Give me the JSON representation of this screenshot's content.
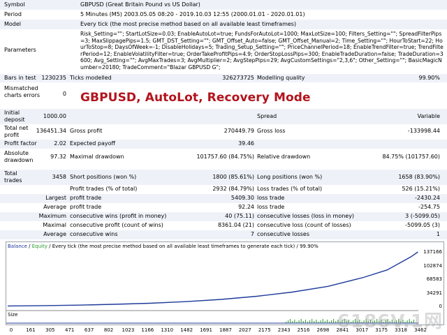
{
  "rows": {
    "symbol": {
      "label": "Symbol",
      "value": "GBPUSD (Great Britain Pound vs US Dollar)"
    },
    "period": {
      "label": "Period",
      "value": "5 Minutes (M5) 2003.05.05 08:20 - 2019.10.03 12:55 (2000.01.01 - 2020.01.01)"
    },
    "model": {
      "label": "Model",
      "value": "Every tick (the most precise method based on all available least timeframes)"
    },
    "parameters": {
      "label": "Parameters",
      "value": "Risk_Setting=\"\"; StartLotSize=0.03; EnableAutoLot=true; FundsForAutoLot=1000; MaxLotSize=100; Filters_Setting=\"\"; SpreadFilterPips=3; MaxSlippagePips=1.5; GMT_DST_Setting=\"\"; GMT_Offset_Auto=false; GMT_Offset_Manual=2; Time_Setting=\"\"; HourToStart=22; HourToStop=8; DaysOfWeek=-1; DisableHolidays=5; Trading_Setup_Setting=\"\"; PriceChannelPeriod=18; EnableTrendFilter=true; TrendFilterPeriod=12; EnableVolatilityFilter=true; OrderTakeProfitPips=4.9; OrderStopLossPips=300; EnableTradeDuration=false; TradeDuration=3600; Avg_Setting=\"\"; AvgMaxTrades=3; AvgMultiplier=2; AvgStepPips=29; AvgCustomSettings=\"2,3,6\"; Other_Setting=\"\"; BasicMagicNumber=20180; TradeComment=\"Blazar GBPUSD G\";"
    },
    "bars_in_test": {
      "label": "Bars in test",
      "value": "1230235"
    },
    "ticks_modelled": {
      "label": "Ticks modelled",
      "value": "326273725"
    },
    "modelling_quality": {
      "label": "Modelling quality",
      "value": "99.90%"
    },
    "mismatched": {
      "label": "Mismatched charts errors",
      "value": "0"
    },
    "initial_deposit": {
      "label": "Initial deposit",
      "value": "1000.00"
    },
    "spread": {
      "label": "Spread",
      "value": "Variable"
    },
    "net_profit": {
      "label": "Total net profit",
      "value": "136451.34"
    },
    "gross_profit": {
      "label": "Gross profit",
      "value": "270449.79"
    },
    "gross_loss": {
      "label": "Gross loss",
      "value": "-133998.44"
    },
    "profit_factor": {
      "label": "Profit factor",
      "value": "2.02"
    },
    "expected_payoff": {
      "label": "Expected payoff",
      "value": "39.46"
    },
    "abs_drawdown": {
      "label": "Absolute drawdown",
      "value": "97.32"
    },
    "max_drawdown": {
      "label": "Maximal drawdown",
      "value": "101757.60 (84.75%)"
    },
    "rel_drawdown": {
      "label": "Relative drawdown",
      "value": "84.75% (101757.60)"
    },
    "total_trades": {
      "label": "Total trades",
      "value": "3458"
    },
    "short_positions": {
      "label": "Short positions (won %)",
      "value": "1800 (85.61%)"
    },
    "long_positions": {
      "label": "Long positions (won %)",
      "value": "1658 (83.90%)"
    },
    "profit_trades": {
      "label": "Profit trades (% of total)",
      "value": "2932 (84.79%)"
    },
    "loss_trades": {
      "label": "Loss trades (% of total)",
      "value": "526 (15.21%)"
    },
    "largest_profit": {
      "prefix": "Largest",
      "label": "profit trade",
      "value": "5409.30"
    },
    "largest_loss": {
      "label": "loss trade",
      "value": "-2430.24"
    },
    "average_profit": {
      "prefix": "Average",
      "label": "profit trade",
      "value": "92.24"
    },
    "average_loss": {
      "label": "loss trade",
      "value": "-254.75"
    },
    "max_cons_wins": {
      "prefix": "Maximum",
      "label": "consecutive wins (profit in money)",
      "value": "40 (75.11)"
    },
    "max_cons_losses": {
      "label": "consecutive losses (loss in money)",
      "value": "3 (-5099.05)"
    },
    "maximal_cons_profit": {
      "prefix": "Maximal",
      "label": "consecutive profit (count of wins)",
      "value": "8361.04 (21)"
    },
    "maximal_cons_loss": {
      "label": "consecutive loss (count of losses)",
      "value": "-5099.05 (3)"
    },
    "avg_cons_wins": {
      "prefix": "Average",
      "label": "consecutive wins",
      "value": "7"
    },
    "avg_cons_losses": {
      "label": "consecutive losses",
      "value": "1"
    }
  },
  "overlay_title": "GBPUSD, AutoLot, Recovery Mode",
  "chart": {
    "legend_balance": "Balance",
    "legend_sep": "/",
    "legend_equity": "Equity",
    "title_rest": "/ Every tick (the most precise method based on all available least timeframes to generate each tick) / 99.90%",
    "size_label": "Size",
    "balance_color": "#1e3a9a",
    "equity_color": "#2a9a2a",
    "y_ticks": [
      "137166",
      "102874",
      "68583",
      "34291",
      "0"
    ],
    "x_ticks": [
      "0",
      "161",
      "305",
      "471",
      "637",
      "802",
      "1023",
      "1166",
      "1310",
      "1482",
      "1691",
      "1887",
      "2027",
      "2175",
      "2343",
      "2516",
      "2698",
      "2841",
      "3017",
      "3175",
      "3318",
      "3462"
    ],
    "chart_data": {
      "type": "line",
      "x": [
        0,
        300,
        600,
        900,
        1200,
        1500,
        1800,
        2100,
        2400,
        2700,
        3000,
        3200,
        3400,
        3458
      ],
      "series": [
        {
          "name": "Balance",
          "values": [
            1000,
            1900,
            3200,
            5200,
            8000,
            12000,
            17500,
            25500,
            36000,
            50500,
            73000,
            92000,
            125000,
            137166
          ]
        }
      ],
      "ylim": [
        0,
        137166
      ],
      "xlim": [
        0,
        3462
      ]
    }
  },
  "watermark": "6186V.1网"
}
